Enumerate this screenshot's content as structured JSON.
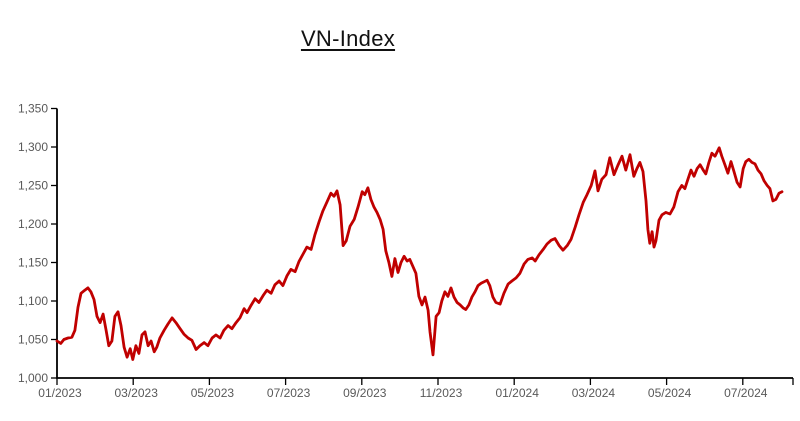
{
  "page": {
    "background": "#ffffff"
  },
  "chart_data": {
    "type": "line",
    "title": "VN-Index",
    "series_name": "VN-Index",
    "line_color": "#C00000",
    "axis_color": "#000000",
    "tick_label_color": "#595959",
    "grid": false,
    "legend": "none",
    "xlabel": "",
    "ylabel": "",
    "ylim": [
      1000,
      1350
    ],
    "x_unit": "months since 01/2023",
    "y_ticks": [
      {
        "label": "1,350",
        "value": 1350
      },
      {
        "label": "1,300",
        "value": 1300
      },
      {
        "label": "1,250",
        "value": 1250
      },
      {
        "label": "1,200",
        "value": 1200
      },
      {
        "label": "1,150",
        "value": 1150
      },
      {
        "label": "1,100",
        "value": 1100
      },
      {
        "label": "1,050",
        "value": 1050
      },
      {
        "label": "1,000",
        "value": 1000
      }
    ],
    "x_ticks": [
      {
        "label": "01/2023",
        "month": 0
      },
      {
        "label": "03/2023",
        "month": 2
      },
      {
        "label": "05/2023",
        "month": 4
      },
      {
        "label": "07/2023",
        "month": 6
      },
      {
        "label": "09/2023",
        "month": 8
      },
      {
        "label": "11/2023",
        "month": 10
      },
      {
        "label": "01/2024",
        "month": 12
      },
      {
        "label": "03/2024",
        "month": 14
      },
      {
        "label": "05/2024",
        "month": 16
      },
      {
        "label": "07/2024",
        "month": 18
      }
    ],
    "points": [
      [
        0,
        1048
      ],
      [
        0.1,
        1045
      ],
      [
        0.18,
        1050
      ],
      [
        0.29,
        1052
      ],
      [
        0.39,
        1053
      ],
      [
        0.47,
        1062
      ],
      [
        0.55,
        1092
      ],
      [
        0.63,
        1110
      ],
      [
        0.73,
        1114
      ],
      [
        0.81,
        1117
      ],
      [
        0.89,
        1112
      ],
      [
        0.97,
        1102
      ],
      [
        1.05,
        1080
      ],
      [
        1.13,
        1072
      ],
      [
        1.21,
        1083
      ],
      [
        1.29,
        1062
      ],
      [
        1.36,
        1042
      ],
      [
        1.44,
        1048
      ],
      [
        1.52,
        1080
      ],
      [
        1.6,
        1086
      ],
      [
        1.68,
        1068
      ],
      [
        1.76,
        1040
      ],
      [
        1.84,
        1027
      ],
      [
        1.92,
        1038
      ],
      [
        1.99,
        1024
      ],
      [
        2.07,
        1042
      ],
      [
        2.15,
        1032
      ],
      [
        2.23,
        1056
      ],
      [
        2.31,
        1060
      ],
      [
        2.39,
        1042
      ],
      [
        2.47,
        1048
      ],
      [
        2.55,
        1034
      ],
      [
        2.62,
        1040
      ],
      [
        2.7,
        1052
      ],
      [
        2.81,
        1062
      ],
      [
        2.91,
        1070
      ],
      [
        3.02,
        1078
      ],
      [
        3.12,
        1072
      ],
      [
        3.23,
        1064
      ],
      [
        3.33,
        1057
      ],
      [
        3.44,
        1052
      ],
      [
        3.54,
        1049
      ],
      [
        3.65,
        1037
      ],
      [
        3.75,
        1042
      ],
      [
        3.86,
        1046
      ],
      [
        3.96,
        1042
      ],
      [
        4.07,
        1052
      ],
      [
        4.17,
        1056
      ],
      [
        4.28,
        1052
      ],
      [
        4.38,
        1062
      ],
      [
        4.49,
        1068
      ],
      [
        4.59,
        1064
      ],
      [
        4.7,
        1072
      ],
      [
        4.8,
        1078
      ],
      [
        4.91,
        1090
      ],
      [
        4.99,
        1085
      ],
      [
        5.09,
        1094
      ],
      [
        5.2,
        1103
      ],
      [
        5.3,
        1098
      ],
      [
        5.41,
        1107
      ],
      [
        5.51,
        1114
      ],
      [
        5.62,
        1110
      ],
      [
        5.72,
        1121
      ],
      [
        5.83,
        1126
      ],
      [
        5.93,
        1120
      ],
      [
        6.04,
        1133
      ],
      [
        6.14,
        1141
      ],
      [
        6.25,
        1138
      ],
      [
        6.35,
        1151
      ],
      [
        6.46,
        1161
      ],
      [
        6.56,
        1170
      ],
      [
        6.67,
        1167
      ],
      [
        6.77,
        1186
      ],
      [
        6.88,
        1203
      ],
      [
        6.98,
        1217
      ],
      [
        7.09,
        1229
      ],
      [
        7.19,
        1240
      ],
      [
        7.27,
        1236
      ],
      [
        7.35,
        1243
      ],
      [
        7.43,
        1225
      ],
      [
        7.51,
        1172
      ],
      [
        7.59,
        1178
      ],
      [
        7.69,
        1197
      ],
      [
        7.8,
        1206
      ],
      [
        7.9,
        1222
      ],
      [
        8.01,
        1242
      ],
      [
        8.08,
        1238
      ],
      [
        8.16,
        1247
      ],
      [
        8.24,
        1232
      ],
      [
        8.32,
        1222
      ],
      [
        8.4,
        1215
      ],
      [
        8.48,
        1206
      ],
      [
        8.56,
        1193
      ],
      [
        8.63,
        1165
      ],
      [
        8.71,
        1150
      ],
      [
        8.79,
        1132
      ],
      [
        8.87,
        1155
      ],
      [
        8.95,
        1137
      ],
      [
        9.03,
        1150
      ],
      [
        9.11,
        1158
      ],
      [
        9.19,
        1152
      ],
      [
        9.26,
        1154
      ],
      [
        9.34,
        1145
      ],
      [
        9.42,
        1136
      ],
      [
        9.5,
        1106
      ],
      [
        9.58,
        1095
      ],
      [
        9.66,
        1105
      ],
      [
        9.74,
        1088
      ],
      [
        9.79,
        1060
      ],
      [
        9.87,
        1030
      ],
      [
        9.95,
        1080
      ],
      [
        10.03,
        1085
      ],
      [
        10.1,
        1100
      ],
      [
        10.18,
        1112
      ],
      [
        10.26,
        1106
      ],
      [
        10.34,
        1117
      ],
      [
        10.42,
        1105
      ],
      [
        10.5,
        1098
      ],
      [
        10.58,
        1095
      ],
      [
        10.66,
        1091
      ],
      [
        10.73,
        1089
      ],
      [
        10.81,
        1095
      ],
      [
        10.89,
        1105
      ],
      [
        10.97,
        1112
      ],
      [
        11.05,
        1120
      ],
      [
        11.13,
        1123
      ],
      [
        11.21,
        1125
      ],
      [
        11.29,
        1127
      ],
      [
        11.36,
        1120
      ],
      [
        11.44,
        1105
      ],
      [
        11.52,
        1098
      ],
      [
        11.63,
        1096
      ],
      [
        11.73,
        1110
      ],
      [
        11.84,
        1122
      ],
      [
        11.94,
        1126
      ],
      [
        12.05,
        1130
      ],
      [
        12.15,
        1136
      ],
      [
        12.26,
        1148
      ],
      [
        12.36,
        1154
      ],
      [
        12.47,
        1156
      ],
      [
        12.55,
        1152
      ],
      [
        12.65,
        1160
      ],
      [
        12.76,
        1167
      ],
      [
        12.86,
        1174
      ],
      [
        12.97,
        1179
      ],
      [
        13.07,
        1181
      ],
      [
        13.18,
        1172
      ],
      [
        13.28,
        1166
      ],
      [
        13.39,
        1172
      ],
      [
        13.49,
        1180
      ],
      [
        13.6,
        1196
      ],
      [
        13.7,
        1212
      ],
      [
        13.81,
        1228
      ],
      [
        13.91,
        1238
      ],
      [
        14.02,
        1250
      ],
      [
        14.12,
        1269
      ],
      [
        14.2,
        1243
      ],
      [
        14.3,
        1258
      ],
      [
        14.41,
        1264
      ],
      [
        14.51,
        1286
      ],
      [
        14.62,
        1264
      ],
      [
        14.72,
        1276
      ],
      [
        14.83,
        1288
      ],
      [
        14.93,
        1270
      ],
      [
        15.04,
        1290
      ],
      [
        15.14,
        1262
      ],
      [
        15.22,
        1272
      ],
      [
        15.3,
        1280
      ],
      [
        15.38,
        1268
      ],
      [
        15.46,
        1230
      ],
      [
        15.51,
        1193
      ],
      [
        15.56,
        1175
      ],
      [
        15.62,
        1190
      ],
      [
        15.67,
        1170
      ],
      [
        15.72,
        1178
      ],
      [
        15.8,
        1205
      ],
      [
        15.88,
        1212
      ],
      [
        15.98,
        1215
      ],
      [
        16.09,
        1213
      ],
      [
        16.19,
        1222
      ],
      [
        16.3,
        1242
      ],
      [
        16.4,
        1250
      ],
      [
        16.48,
        1246
      ],
      [
        16.56,
        1258
      ],
      [
        16.64,
        1270
      ],
      [
        16.72,
        1262
      ],
      [
        16.8,
        1272
      ],
      [
        16.88,
        1277
      ],
      [
        16.96,
        1270
      ],
      [
        17.03,
        1265
      ],
      [
        17.11,
        1280
      ],
      [
        17.19,
        1292
      ],
      [
        17.27,
        1288
      ],
      [
        17.38,
        1299
      ],
      [
        17.45,
        1288
      ],
      [
        17.53,
        1277
      ],
      [
        17.61,
        1266
      ],
      [
        17.69,
        1281
      ],
      [
        17.77,
        1268
      ],
      [
        17.85,
        1254
      ],
      [
        17.93,
        1248
      ],
      [
        18.01,
        1272
      ],
      [
        18.08,
        1281
      ],
      [
        18.16,
        1284
      ],
      [
        18.24,
        1280
      ],
      [
        18.32,
        1278
      ],
      [
        18.4,
        1270
      ],
      [
        18.48,
        1265
      ],
      [
        18.56,
        1256
      ],
      [
        18.64,
        1250
      ],
      [
        18.71,
        1246
      ],
      [
        18.79,
        1230
      ],
      [
        18.87,
        1232
      ],
      [
        18.95,
        1240
      ],
      [
        19.03,
        1242
      ]
    ]
  }
}
